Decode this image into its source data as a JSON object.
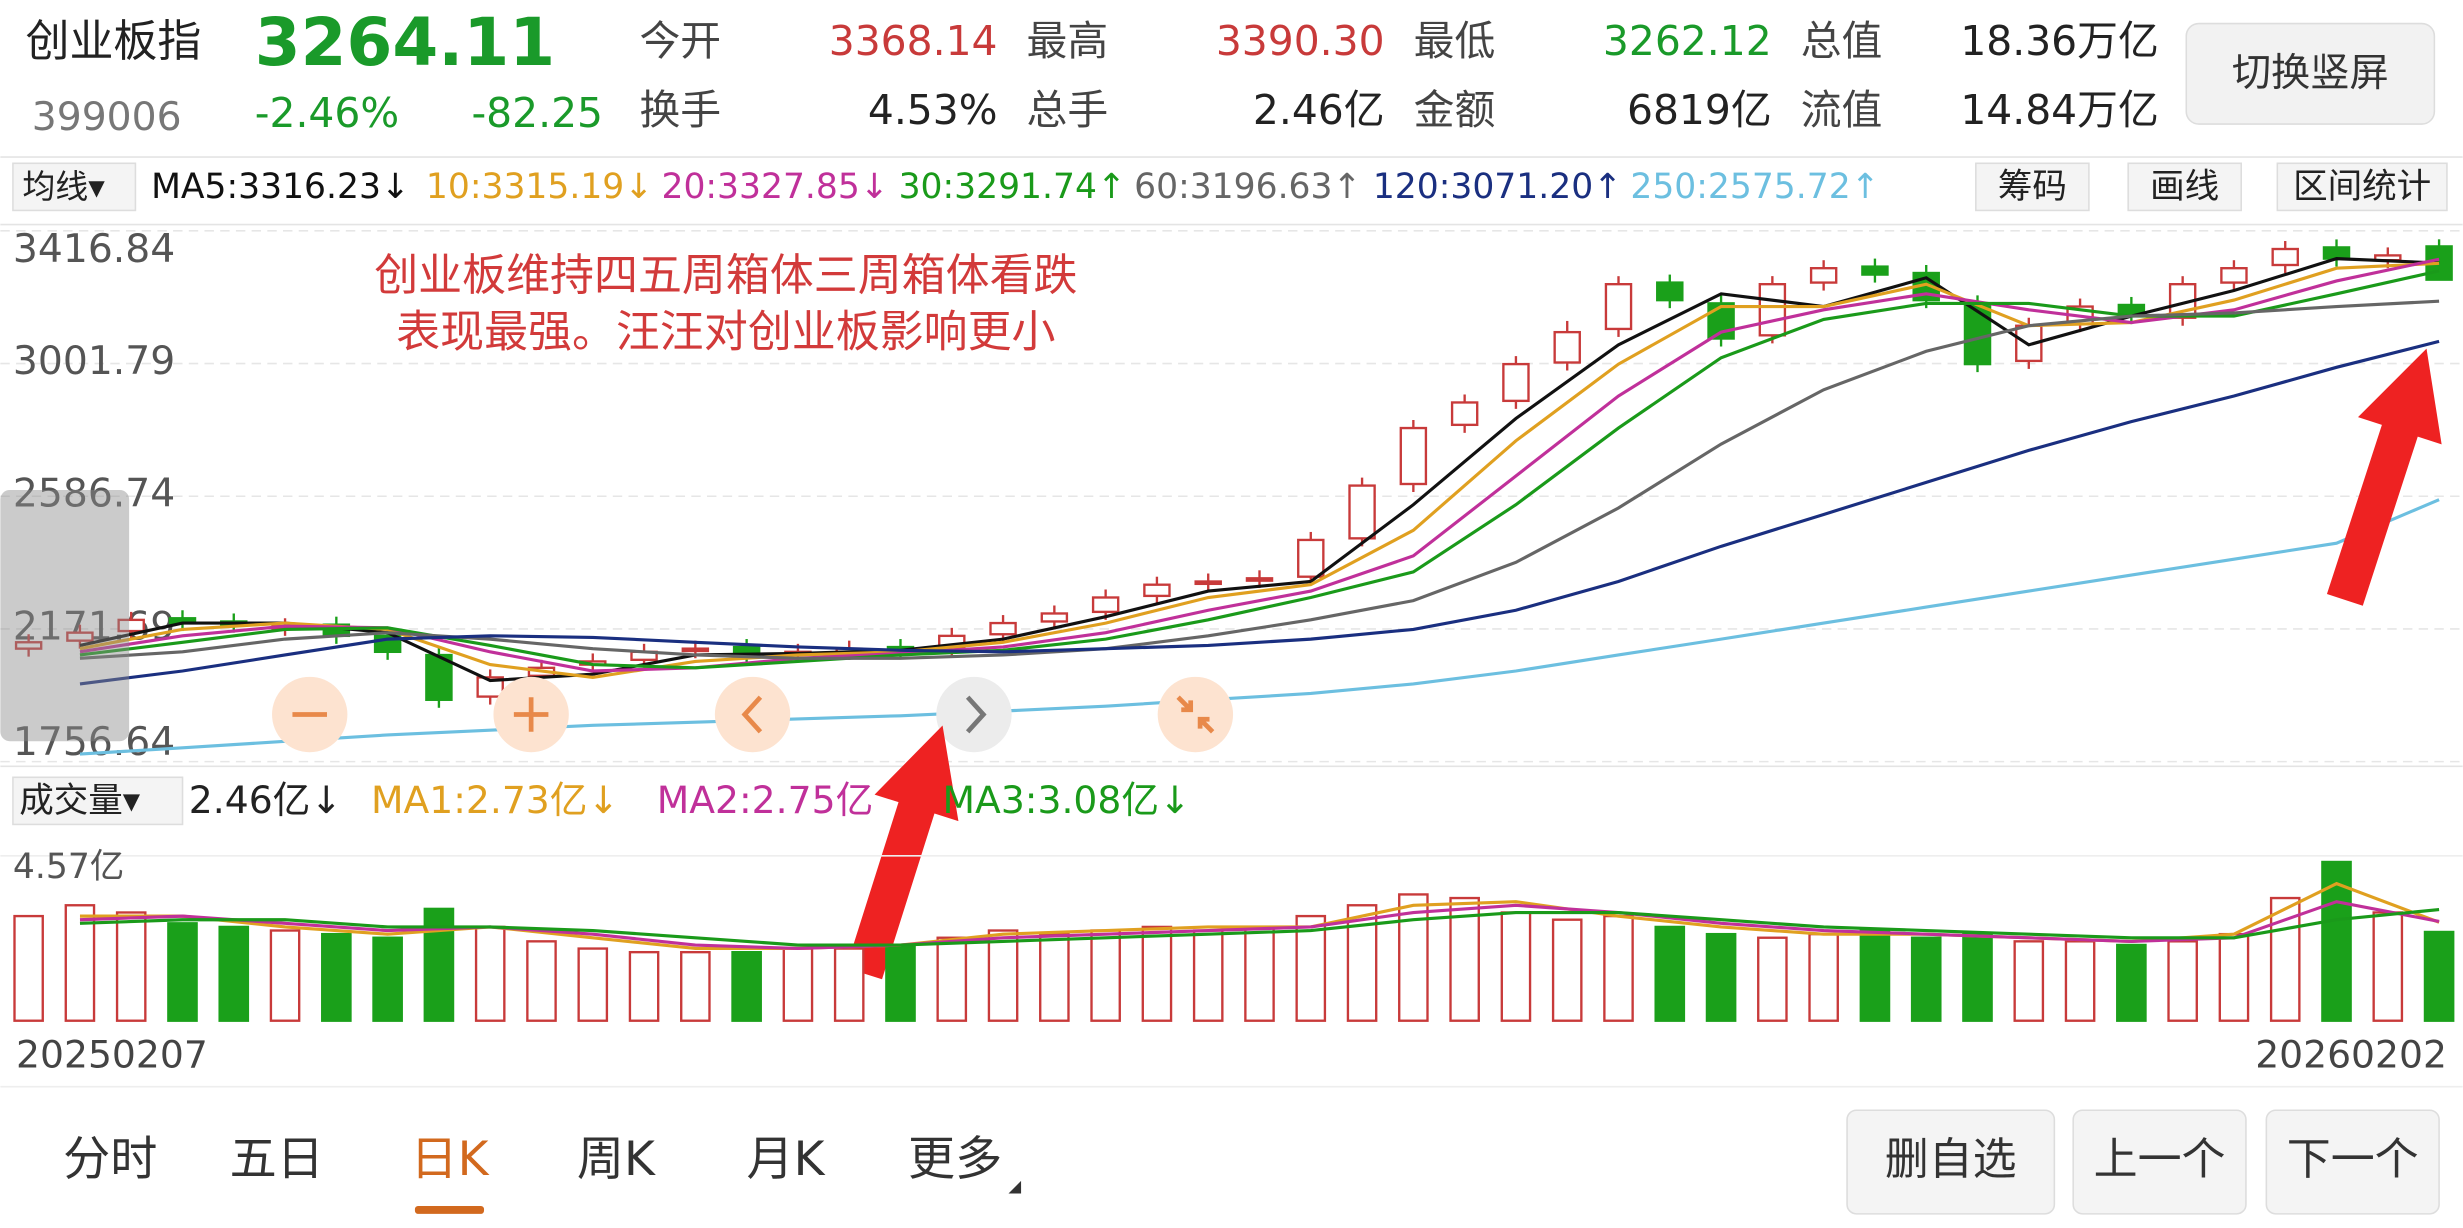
{
  "header": {
    "name": "创业板指",
    "price": "3264.11",
    "code": "399006",
    "change_pct": "-2.46%",
    "change": "-82.25",
    "stats": [
      {
        "label": "今开",
        "value": "3368.14",
        "color": "#c83a3a"
      },
      {
        "label": "最高",
        "value": "3390.30",
        "color": "#c83a3a"
      },
      {
        "label": "最低",
        "value": "3262.12",
        "color": "#1a9a2a"
      },
      {
        "label": "总值",
        "value": "18.36万亿",
        "color": "#222"
      },
      {
        "label": "换手",
        "value": "4.53%",
        "color": "#222"
      },
      {
        "label": "总手",
        "value": "2.46亿",
        "color": "#222"
      },
      {
        "label": "金额",
        "value": "6819亿",
        "color": "#222"
      },
      {
        "label": "流值",
        "value": "14.84万亿",
        "color": "#222"
      }
    ],
    "button": "切换竖屏"
  },
  "toolbar": {
    "selector": "均线▾",
    "buttons": [
      "筹码",
      "画线",
      "区间统计"
    ]
  },
  "annotation": [
    "创业板维持四五周箱体三周箱体看跌",
    "表现最强。汪汪对创业板影响更小"
  ],
  "chart_data": {
    "type": "candlestick",
    "ylim": [
      1756.64,
      3416.84
    ],
    "yticks": [
      3416.84,
      3001.79,
      2586.74,
      2171.69,
      1756.64
    ],
    "grid": true,
    "up_color": "#c83a3a",
    "down_color": "#1aa01a",
    "x_labels": [
      "20250207",
      "20260202"
    ],
    "open": [
      2110,
      2135,
      2165,
      2205,
      2195,
      2175,
      2185,
      2150,
      2090,
      1960,
      2025,
      2060,
      2075,
      2105,
      2115,
      2095,
      2100,
      2115,
      2110,
      2155,
      2195,
      2225,
      2275,
      2315,
      2325,
      2335,
      2455,
      2625,
      2810,
      2885,
      3005,
      3110,
      3255,
      3190,
      3090,
      3255,
      3305,
      3285,
      3190,
      3010,
      3125,
      3185,
      3145,
      3255,
      3310,
      3365,
      3325,
      3368.14
    ],
    "high": [
      2155,
      2185,
      2225,
      2230,
      2220,
      2205,
      2210,
      2175,
      2115,
      2045,
      2075,
      2095,
      2125,
      2135,
      2140,
      2125,
      2135,
      2140,
      2175,
      2215,
      2245,
      2295,
      2335,
      2345,
      2355,
      2475,
      2645,
      2825,
      2905,
      3025,
      3135,
      3275,
      3280,
      3215,
      3275,
      3325,
      3330,
      3310,
      3215,
      3145,
      3205,
      3210,
      3275,
      3325,
      3385,
      3390,
      3365,
      3390.3
    ],
    "low": [
      2085,
      2110,
      2140,
      2165,
      2160,
      2150,
      2125,
      2075,
      1925,
      1935,
      2000,
      2035,
      2050,
      2080,
      2065,
      2070,
      2075,
      2080,
      2085,
      2130,
      2170,
      2200,
      2250,
      2290,
      2300,
      2310,
      2430,
      2600,
      2785,
      2860,
      2980,
      3085,
      3175,
      3055,
      3065,
      3230,
      3255,
      3175,
      2975,
      2985,
      3100,
      3125,
      3120,
      3230,
      3285,
      3305,
      3300,
      3262.12
    ],
    "close": [
      2130,
      2160,
      2200,
      2190,
      2185,
      2180,
      2150,
      2100,
      1950,
      2020,
      2050,
      2070,
      2100,
      2110,
      2090,
      2100,
      2110,
      2105,
      2150,
      2190,
      2220,
      2270,
      2310,
      2320,
      2330,
      2450,
      2620,
      2800,
      2880,
      3000,
      3100,
      3250,
      3200,
      3080,
      3250,
      3300,
      3280,
      3200,
      3000,
      3120,
      3180,
      3150,
      3250,
      3300,
      3360,
      3330,
      3340,
      3264.11
    ],
    "series": [
      {
        "label": "MA5:3316.23↓",
        "color": "#111111",
        "values": [
          2120,
          2190,
          2190,
          2160,
          2010,
          2030,
          2090,
          2095,
          2105,
          2140,
          2210,
          2290,
          2320,
          2560,
          2830,
          3060,
          3220,
          3180,
          3270,
          3060,
          3150,
          3230,
          3330,
          3316.23
        ]
      },
      {
        "label": "10:3315.19↓",
        "color": "#e0a020",
        "values": [
          2110,
          2170,
          2190,
          2170,
          2060,
          2020,
          2070,
          2090,
          2100,
          2130,
          2190,
          2270,
          2310,
          2480,
          2760,
          3000,
          3180,
          3180,
          3250,
          3120,
          3130,
          3200,
          3300,
          3315.19
        ]
      },
      {
        "label": "20:3327.85↓",
        "color": "#c0309a",
        "values": [
          2100,
          2150,
          2180,
          2175,
          2100,
          2040,
          2050,
          2080,
          2095,
          2115,
          2160,
          2230,
          2290,
          2400,
          2650,
          2900,
          3100,
          3170,
          3220,
          3170,
          3130,
          3170,
          3260,
          3327.85
        ]
      },
      {
        "label": "30:3291.74↑",
        "color": "#1a9a1a",
        "values": [
          2090,
          2130,
          2170,
          2175,
          2120,
          2060,
          2050,
          2070,
          2090,
          2105,
          2140,
          2200,
          2270,
          2350,
          2560,
          2800,
          3020,
          3140,
          3190,
          3190,
          3150,
          3150,
          3220,
          3291.74
        ]
      },
      {
        "label": "60:3196.63↑",
        "color": "#666666",
        "values": [
          2080,
          2100,
          2140,
          2160,
          2140,
          2110,
          2090,
          2080,
          2080,
          2090,
          2110,
          2150,
          2200,
          2260,
          2380,
          2550,
          2750,
          2920,
          3040,
          3120,
          3150,
          3160,
          3180,
          3196.63
        ]
      },
      {
        "label": "120:3071.20↑",
        "color": "#1a2f80",
        "values": [
          2000,
          2040,
          2090,
          2140,
          2150,
          2145,
          2130,
          2115,
          2105,
          2100,
          2110,
          2120,
          2140,
          2170,
          2230,
          2320,
          2430,
          2530,
          2630,
          2730,
          2820,
          2900,
          2990,
          3071.2
        ]
      },
      {
        "label": "250:2575.72↑",
        "color": "#6cbfe0",
        "values": [
          1780,
          1800,
          1820,
          1840,
          1855,
          1870,
          1880,
          1890,
          1900,
          1915,
          1930,
          1950,
          1970,
          2000,
          2040,
          2090,
          2140,
          2190,
          2240,
          2290,
          2340,
          2390,
          2440,
          2575.72
        ]
      }
    ]
  },
  "volume": {
    "type": "bar",
    "selector": "成交量▾",
    "current_label": "2.46亿↓",
    "ylim": [
      0,
      4.57
    ],
    "yticks": [
      {
        "value": 4.57,
        "label": "4.57亿"
      }
    ],
    "values": [
      2.9,
      3.2,
      3.0,
      2.7,
      2.6,
      2.5,
      2.4,
      2.3,
      3.1,
      2.6,
      2.2,
      2.0,
      1.9,
      1.9,
      1.9,
      2.0,
      2.0,
      2.1,
      2.3,
      2.5,
      2.4,
      2.5,
      2.6,
      2.5,
      2.6,
      2.9,
      3.2,
      3.5,
      3.4,
      3.0,
      2.8,
      2.9,
      2.6,
      2.4,
      2.3,
      2.4,
      2.5,
      2.3,
      2.4,
      2.2,
      2.2,
      2.1,
      2.2,
      2.4,
      3.4,
      4.4,
      3.0,
      2.46
    ],
    "series": [
      {
        "label": "MA1:2.73亿↓",
        "color": "#e0a020",
        "values": [
          2.9,
          2.9,
          2.6,
          2.4,
          2.6,
          2.3,
          2.0,
          2.0,
          2.1,
          2.4,
          2.5,
          2.6,
          2.6,
          3.2,
          3.3,
          2.9,
          2.6,
          2.4,
          2.4,
          2.3,
          2.2,
          2.4,
          3.8,
          2.73
        ]
      },
      {
        "label": "MA2:2.75亿",
        "color": "#c0309a",
        "values": [
          2.8,
          2.9,
          2.7,
          2.5,
          2.6,
          2.4,
          2.1,
          2.0,
          2.1,
          2.3,
          2.4,
          2.5,
          2.6,
          3.0,
          3.2,
          3.0,
          2.7,
          2.5,
          2.4,
          2.3,
          2.2,
          2.3,
          3.3,
          2.75
        ]
      },
      {
        "label": "MA3:3.08亿↓",
        "color": "#1a9a1a",
        "values": [
          2.7,
          2.8,
          2.8,
          2.6,
          2.6,
          2.5,
          2.3,
          2.1,
          2.1,
          2.2,
          2.3,
          2.4,
          2.5,
          2.8,
          3.0,
          3.0,
          2.8,
          2.6,
          2.5,
          2.4,
          2.3,
          2.3,
          2.8,
          3.08
        ]
      }
    ]
  },
  "tabs": {
    "items": [
      "分时",
      "五日",
      "日K",
      "周K",
      "月K",
      "更多"
    ],
    "active": 2
  },
  "actions": [
    "删自选",
    "上一个",
    "下一个"
  ]
}
